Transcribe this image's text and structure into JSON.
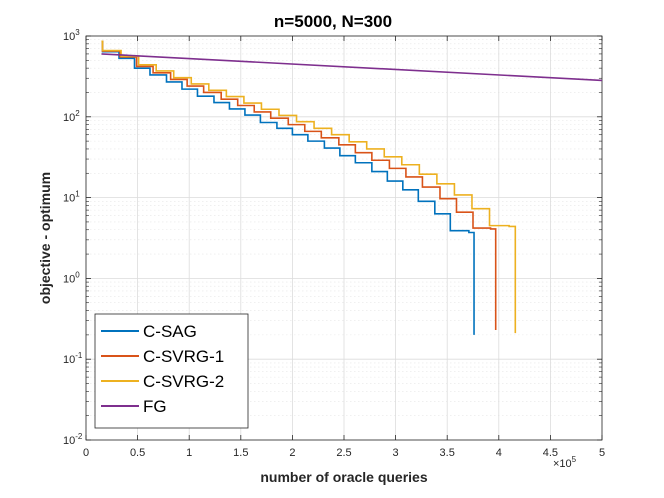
{
  "chart_data": {
    "type": "line",
    "title": "n=5000, N=300",
    "xlabel": "number of oracle queries",
    "ylabel": "objective - optimum",
    "x_multiplier": "×10",
    "x_multiplier_exp": "5",
    "xlim": [
      0,
      5
    ],
    "ylim_log10": [
      -2,
      3
    ],
    "xscale": "linear (x 10^5)",
    "yscale": "log",
    "grid": true,
    "legend_position": "bottom-left",
    "x_ticks": [
      "0",
      "0.5",
      "1",
      "1.5",
      "2",
      "2.5",
      "3",
      "3.5",
      "4",
      "4.5",
      "5"
    ],
    "y_ticks": [
      {
        "base": "10",
        "exp": "-2"
      },
      {
        "base": "10",
        "exp": "-1"
      },
      {
        "base": "10",
        "exp": "0"
      },
      {
        "base": "10",
        "exp": "1"
      },
      {
        "base": "10",
        "exp": "2"
      },
      {
        "base": "10",
        "exp": "3"
      }
    ],
    "series": [
      {
        "name": "C-SAG",
        "color": "#0072BD",
        "end_x": 3.76,
        "end_y": 0.2,
        "steps": [
          [
            0.15,
            860
          ],
          [
            0.16,
            640
          ],
          [
            0.32,
            530
          ],
          [
            0.47,
            400
          ],
          [
            0.62,
            330
          ],
          [
            0.78,
            270
          ],
          [
            0.93,
            220
          ],
          [
            1.08,
            180
          ],
          [
            1.24,
            150
          ],
          [
            1.39,
            125
          ],
          [
            1.54,
            105
          ],
          [
            1.69,
            85
          ],
          [
            1.85,
            72
          ],
          [
            2.0,
            60
          ],
          [
            2.15,
            50
          ],
          [
            2.31,
            41
          ],
          [
            2.46,
            33
          ],
          [
            2.61,
            27
          ],
          [
            2.77,
            21
          ],
          [
            2.92,
            16
          ],
          [
            3.07,
            12.5
          ],
          [
            3.22,
            9
          ],
          [
            3.38,
            6.3
          ],
          [
            3.53,
            3.9
          ],
          [
            3.71,
            3.7
          ],
          [
            3.76,
            0.2
          ]
        ]
      },
      {
        "name": "C-SVRG-1",
        "color": "#D95319",
        "end_x": 3.97,
        "end_y": 0.23,
        "steps": [
          [
            0.15,
            860
          ],
          [
            0.16,
            650
          ],
          [
            0.33,
            550
          ],
          [
            0.49,
            420
          ],
          [
            0.65,
            350
          ],
          [
            0.82,
            290
          ],
          [
            0.98,
            240
          ],
          [
            1.14,
            200
          ],
          [
            1.31,
            165
          ],
          [
            1.47,
            138
          ],
          [
            1.63,
            115
          ],
          [
            1.79,
            96
          ],
          [
            1.96,
            80
          ],
          [
            2.12,
            66
          ],
          [
            2.28,
            55
          ],
          [
            2.45,
            45
          ],
          [
            2.61,
            36
          ],
          [
            2.77,
            29
          ],
          [
            2.94,
            23
          ],
          [
            3.1,
            18
          ],
          [
            3.26,
            13.5
          ],
          [
            3.43,
            9.7
          ],
          [
            3.59,
            6.6
          ],
          [
            3.75,
            4.2
          ],
          [
            3.92,
            4.1
          ],
          [
            3.97,
            0.23
          ]
        ]
      },
      {
        "name": "C-SVRG-2",
        "color": "#EDB120",
        "end_x": 4.16,
        "end_y": 0.21,
        "steps": [
          [
            0.15,
            860
          ],
          [
            0.16,
            660
          ],
          [
            0.34,
            560
          ],
          [
            0.51,
            440
          ],
          [
            0.68,
            370
          ],
          [
            0.85,
            305
          ],
          [
            1.02,
            255
          ],
          [
            1.19,
            213
          ],
          [
            1.36,
            178
          ],
          [
            1.53,
            148
          ],
          [
            1.7,
            124
          ],
          [
            1.87,
            104
          ],
          [
            2.04,
            87
          ],
          [
            2.21,
            72
          ],
          [
            2.38,
            60
          ],
          [
            2.55,
            49
          ],
          [
            2.72,
            40
          ],
          [
            2.89,
            32
          ],
          [
            3.06,
            25.5
          ],
          [
            3.23,
            19.5
          ],
          [
            3.4,
            14.8
          ],
          [
            3.57,
            10.8
          ],
          [
            3.74,
            7.3
          ],
          [
            3.91,
            4.5
          ],
          [
            4.1,
            4.4
          ],
          [
            4.16,
            0.21
          ]
        ]
      },
      {
        "name": "FG",
        "color": "#7E2F8E",
        "points": [
          [
            0.15,
            600
          ],
          [
            5.0,
            282
          ]
        ]
      }
    ]
  }
}
